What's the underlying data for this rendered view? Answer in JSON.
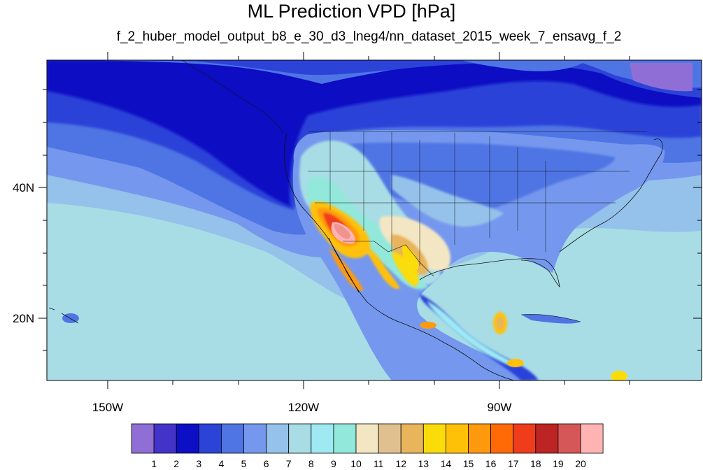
{
  "title": "ML Prediction VPD [hPa]",
  "subtitle": "f_2_huber_model_output_b8_e_30_d3_lneg4/nn_dataset_2015_week_7_ensavg_f_2",
  "axes": {
    "lon_labels": [
      "150W",
      "120W",
      "90W"
    ],
    "lat_labels": [
      "40N",
      "20N"
    ]
  },
  "colorbar": {
    "labels": [
      "1",
      "2",
      "3",
      "4",
      "5",
      "6",
      "7",
      "8",
      "9",
      "10",
      "11",
      "12",
      "13",
      "14",
      "15",
      "16",
      "17",
      "18",
      "19",
      "20"
    ],
    "colors": [
      "#8f6fd6",
      "#4433c8",
      "#0d0fc4",
      "#2c43d8",
      "#4f75e4",
      "#7598ee",
      "#94c2ea",
      "#a8dde6",
      "#9ee9f2",
      "#92e8da",
      "#f3e6c3",
      "#e0c08e",
      "#e8b45c",
      "#fbdc0b",
      "#ffc107",
      "#ff9a0f",
      "#ff6a07",
      "#ef3c1b",
      "#bd2424",
      "#d65757",
      "#ffb3b3"
    ]
  }
}
